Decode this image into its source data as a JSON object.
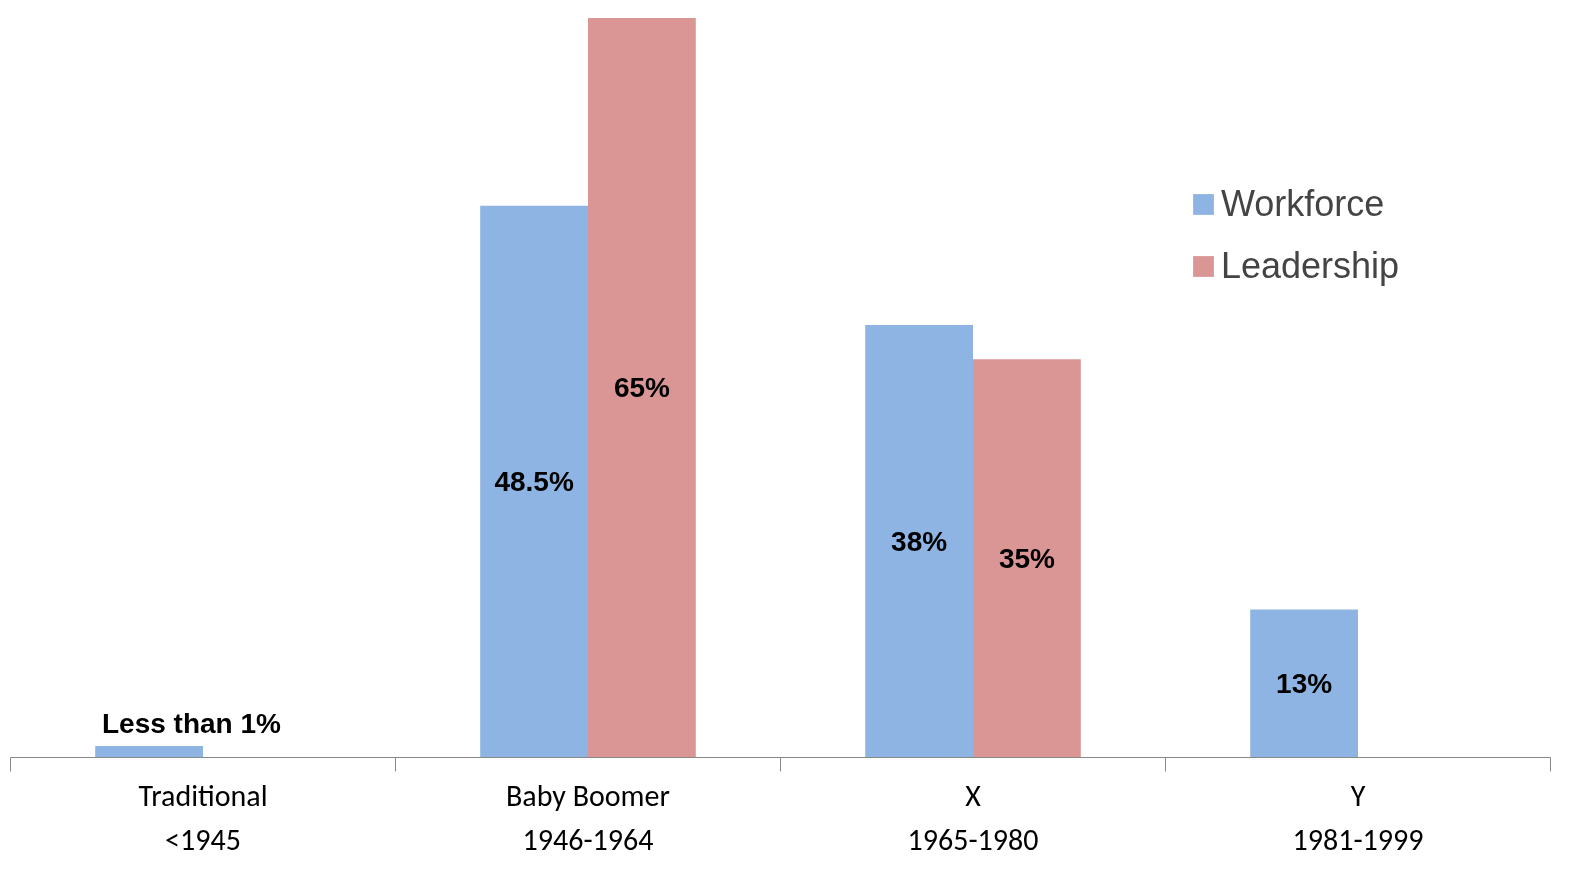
{
  "chart_data": {
    "type": "bar",
    "categories": [
      "Traditional\n<1945",
      "Baby Boomer\n1946-1964",
      "X\n1965-1980",
      "Y\n1981-1999"
    ],
    "series": [
      {
        "name": "Workforce",
        "color": "#8eb4e3",
        "values": [
          1,
          48.5,
          38,
          13
        ],
        "value_labels": [
          "Less than 1%",
          "48.5%",
          "38%",
          "13%"
        ]
      },
      {
        "name": "Leadership",
        "color": "#d99694",
        "values": [
          null,
          65,
          35,
          null
        ],
        "value_labels": [
          null,
          "65%",
          "35%",
          null
        ]
      }
    ],
    "legend": "top right",
    "grid": false,
    "tick_labels": "x"
  }
}
